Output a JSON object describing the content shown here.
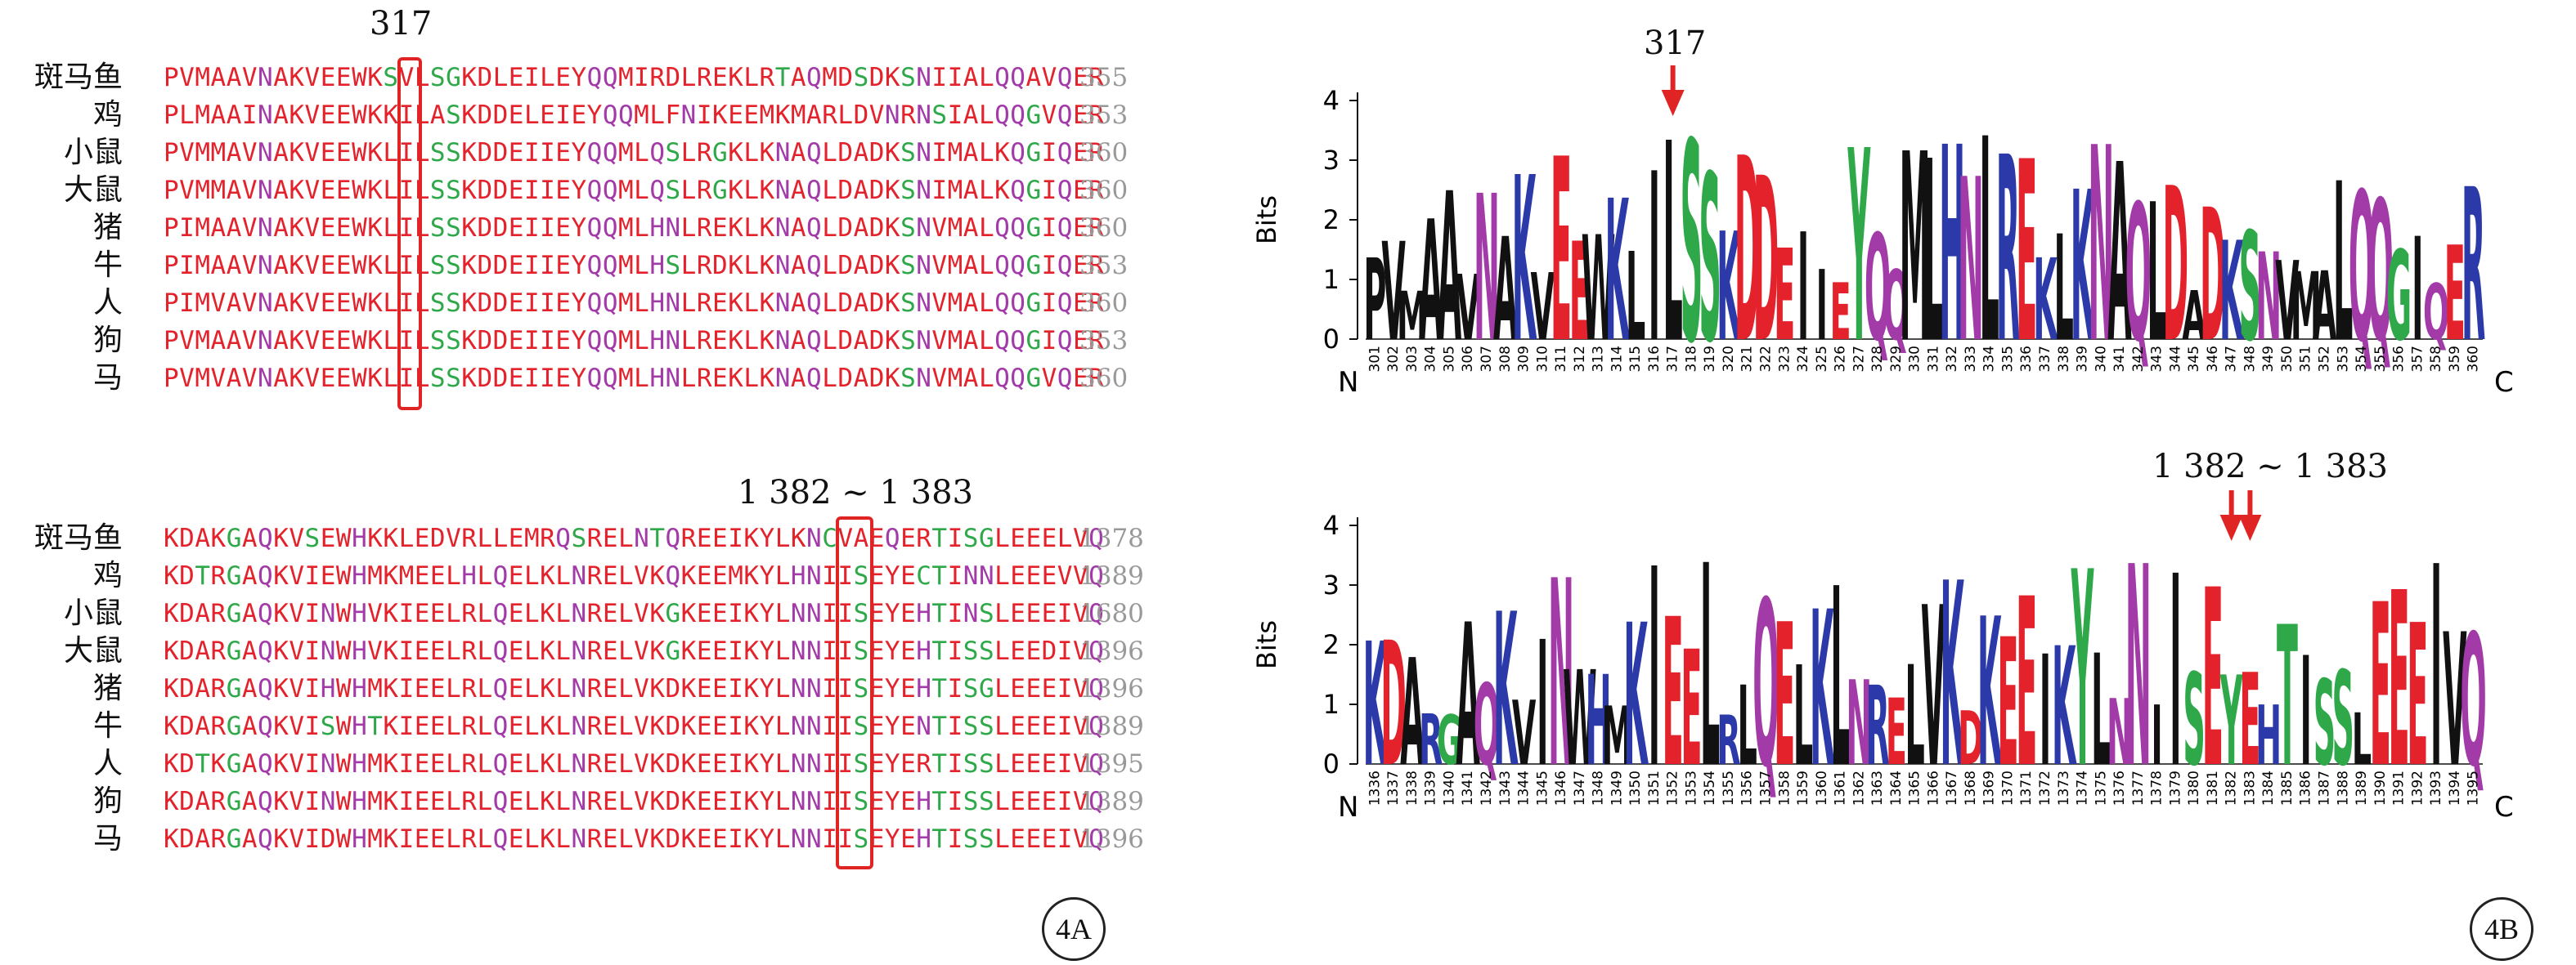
{
  "panelA": {
    "label": "4A",
    "block1": {
      "marker": "317",
      "rows": [
        {
          "name": "斑马鱼",
          "seq": "PVMAAVNAKVEEWKSVLSGKDLEILEYQQMIRDLREKLRTAQMDSDKSNIIALQQAVQER",
          "end": "355"
        },
        {
          "name": "鸡",
          "seq": "PLMAAINAKVEEWKKILASKDDELEIEYQQMLFNIKEEMKMARLDVNRNSIALQQGVQER",
          "end": "353"
        },
        {
          "name": "小鼠",
          "seq": "PVMMAVNAKVEEWKLILSSKDDEIIEYQQMLQSLRGKLKNAQLDADKSNIMALKQGIQER",
          "end": "360"
        },
        {
          "name": "大鼠",
          "seq": "PVMMAVNAKVEEWKLILSSKDDEIIEYQQMLQSLRGKLKNAQLDADKSNIMALKQGIQER",
          "end": "360"
        },
        {
          "name": "猪",
          "seq": "PIMAAVNAKVEEWKLILSSKDDEIIEYQQMLHNLREKLKNAQLDADKSNVMALQQGIQER",
          "end": "360"
        },
        {
          "name": "牛",
          "seq": "PIMAAVNAKVEEWKLILSSKDDEIIEYQQMLHSLRDKLKNAQLDADKSNVMALQQGIQER",
          "end": "353"
        },
        {
          "name": "人",
          "seq": "PIMVAVNAKVEEWKLILSSKDDEIIEYQQMLHNLREKLKNAQLDADKSNVMALQQGIQER",
          "end": "360"
        },
        {
          "name": "狗",
          "seq": "PVMAAVNAKVEEWKLILSSKDDEIIEYQQMLHNLREKLKNAQLDADKSNVMALQQGIQER",
          "end": "353"
        },
        {
          "name": "马",
          "seq": "PVMVAVNAKVEEWKLILSSKDDEIIEYQQMLHNLREKLKNAQLDADKSNVMALQQGVQER",
          "end": "360"
        }
      ]
    },
    "block2": {
      "marker": "1 382 ~ 1 383",
      "rows": [
        {
          "name": "斑马鱼",
          "seq": "KDAKGAQKVSEWHKKLEDVRLLEMRQSRELNTQREEIKYLKNCVAEQERTISGLEEELVQ",
          "end": "1378"
        },
        {
          "name": "鸡",
          "seq": "KDTRGAQKVIEWHMKMEELHLQELKLNRELVKQKEEMKYLHNIISEYECTINNLEEEVVQ",
          "end": "1389"
        },
        {
          "name": "小鼠",
          "seq": "KDARGAQKVINWHVKIEELRLQELKLNRELVKGKEEIKYLNNIISEYEHTINSLEEEIVQ",
          "end": "1680"
        },
        {
          "name": "大鼠",
          "seq": "KDARGAQKVINWHVKIEELRLQELKLNRELVKGKEEIKYLNNIISEYEHTISSLEEDIVQ",
          "end": "1396"
        },
        {
          "name": "猪",
          "seq": "KDARGAQKVIHWHMKIEELRLQELKLNRELVKDKEEIKYLNNIISEYEHTISGLEEEIVQ",
          "end": "1396"
        },
        {
          "name": "牛",
          "seq": "KDARGAQKVISWHTKIEELRLQELKLNRELVKDKEEIKYLNNIISEYENTISSLEEEIVQ",
          "end": "1389"
        },
        {
          "name": "人",
          "seq": "KDTKGAQKVINWHMKIEELRLQELKLNRELVKDKEEIKYLNNIISEYERTISSLEEEIVQ",
          "end": "1395"
        },
        {
          "name": "狗",
          "seq": "KDARGAQKVINWHMKIEELRLQELKLNRELVKDKEEIKYLNNIISEYEHTISSLEEEIVQ",
          "end": "1389"
        },
        {
          "name": "马",
          "seq": "KDARGAQKVIDWHMKIEELRLQELKLNRELVKDKEEIKYLNNIISEYEHTISSLEEEIVQ",
          "end": "1396"
        }
      ]
    }
  },
  "panelB": {
    "label": "4B",
    "logo1": {
      "marker": "317",
      "ylabel": "Bits",
      "yticks": [
        "0",
        "1",
        "2",
        "3",
        "4"
      ],
      "nterm": "N",
      "cterm": "C",
      "positions_start": 301,
      "positions_end": 360,
      "consensus": "PVMAAVNAKVEEWKLILSSKDDEIIEYQQMLHNLREKLKNAQLDADKSNVMALQQGIQER"
    },
    "logo2": {
      "marker": "1 382 ~ 1 383",
      "ylabel": "Bits",
      "yticks": [
        "0",
        "1",
        "2",
        "3",
        "4"
      ],
      "nterm": "N",
      "cterm": "C",
      "positions_start": 1336,
      "positions_end": 1395,
      "consensus": "KDARGAQKVINWHMKIEELRLQELKLNRELVKDKEEIKYLNNIISEYEHTISSLEEEIVQ"
    }
  },
  "colors": {
    "acidic_basic_red": "#e4222b",
    "blue": "#2b3aa8",
    "purple": "#a23aa8",
    "green": "#2fa84a",
    "black": "#111111",
    "box": "#e02323"
  }
}
